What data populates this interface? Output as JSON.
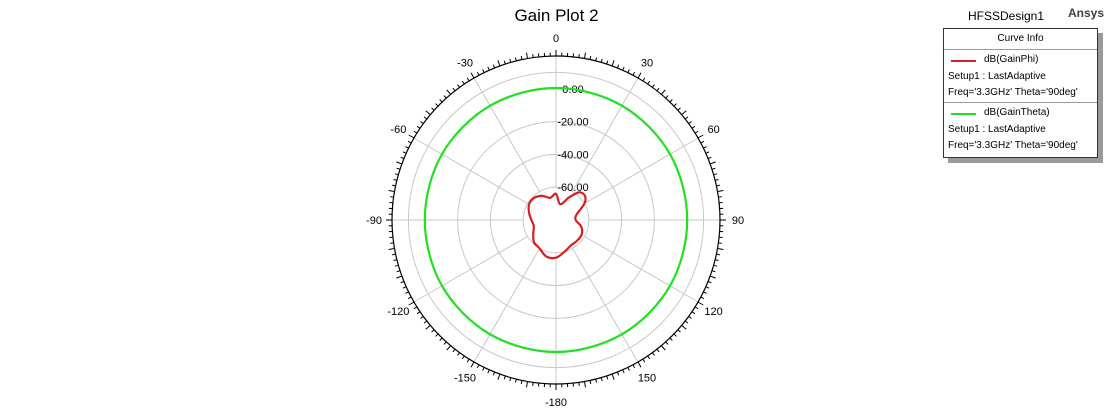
{
  "header": {
    "design": "HFSSDesign1",
    "brand": "Ansys"
  },
  "legend": {
    "title": "Curve Info",
    "entries": [
      {
        "name": "dB(GainPhi)",
        "setup": "Setup1 : LastAdaptive",
        "freq": "Freq='3.3GHz' Theta='90deg'",
        "color": "#d42020"
      },
      {
        "name": "dB(GainTheta)",
        "setup": "Setup1 : LastAdaptive",
        "freq": "Freq='3.3GHz' Theta='90deg'",
        "color": "#22e022"
      }
    ]
  },
  "chart_data": {
    "type": "polar",
    "title": "Gain Plot 2",
    "angle_unit": "deg",
    "angle_ticks": [
      "0",
      "30",
      "60",
      "90",
      "120",
      "150",
      "-180",
      "-150",
      "-120",
      "-90",
      "-60",
      "-30"
    ],
    "angle_tick_values": [
      0,
      30,
      60,
      90,
      120,
      150,
      180,
      -150,
      -120,
      -90,
      -60,
      -30
    ],
    "radial_ticks": [
      "0.00",
      "-20.00",
      "-40.00",
      "-60.00"
    ],
    "radial_tick_values": [
      0,
      -20,
      -40,
      -60
    ],
    "radial_range": [
      -80,
      20
    ],
    "grid": true,
    "series": [
      {
        "name": "dB(GainPhi)",
        "color": "#d42020",
        "angles": [
          0,
          15,
          30,
          40,
          50,
          60,
          75,
          90,
          105,
          120,
          135,
          150,
          165,
          180,
          -165,
          -150,
          -135,
          -120,
          -105,
          -90,
          -75,
          -60,
          -45,
          -30,
          -15
        ],
        "values": [
          -64,
          -70,
          -64,
          -58,
          -57,
          -60,
          -67,
          -68,
          -64,
          -62,
          -62,
          -62,
          -60,
          -57,
          -57,
          -60,
          -61,
          -64,
          -66,
          -65,
          -63,
          -61,
          -61,
          -63,
          -66
        ]
      },
      {
        "name": "dB(GainTheta)",
        "color": "#22e022",
        "angles": [
          0,
          30,
          60,
          90,
          120,
          150,
          180,
          -150,
          -120,
          -90,
          -60,
          -30
        ],
        "values": [
          0.5,
          0.5,
          0.3,
          0.0,
          0.3,
          0.5,
          0.5,
          0.5,
          0.3,
          0.0,
          0.3,
          0.5
        ]
      }
    ]
  }
}
